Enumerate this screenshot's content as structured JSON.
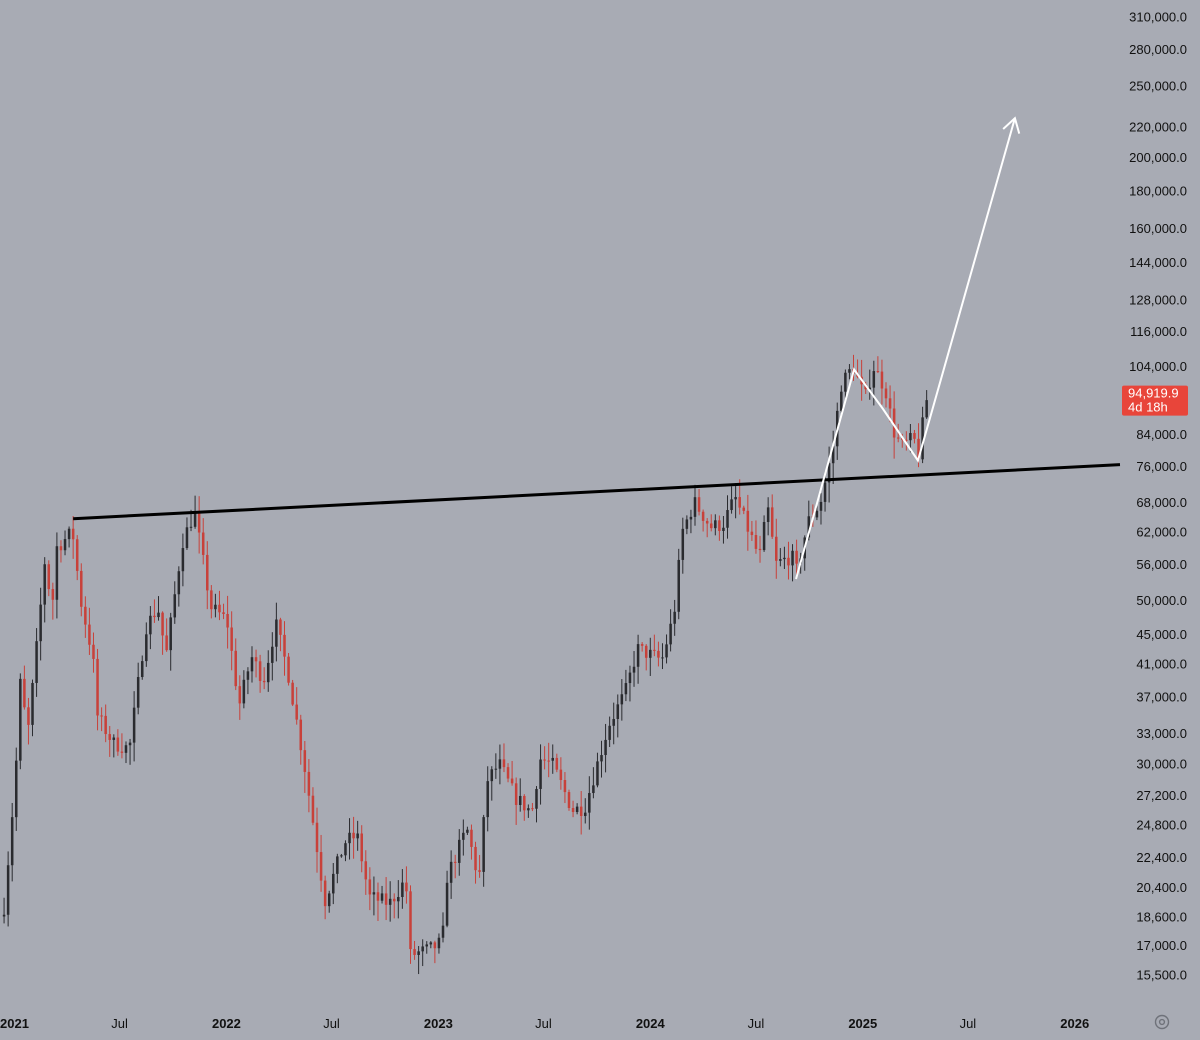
{
  "colors": {
    "background": "#a8abb4",
    "bull": "#2a2b2f",
    "bear": "#c8413a",
    "trendline": "#000000",
    "projection": "#ffffff",
    "price_label": "#e8453a"
  },
  "chart_data": {
    "type": "candlestick",
    "scale": "log",
    "x_axis_type": "date",
    "ylim": [
      14800,
      315000
    ],
    "xlim": [
      "2020-12-07",
      "2026-03-20"
    ],
    "yticks": [
      "15,500.0",
      "17,000.0",
      "18,600.0",
      "20,400.0",
      "22,400.0",
      "24,800.0",
      "27,200.0",
      "30,000.0",
      "33,000.0",
      "37,000.0",
      "41,000.0",
      "45,000.0",
      "50,000.0",
      "56,000.0",
      "62,000.0",
      "68,000.0",
      "76,000.0",
      "84,000.0",
      "104,000.0",
      "116,000.0",
      "128,000.0",
      "144,000.0",
      "160,000.0",
      "180,000.0",
      "200,000.0",
      "220,000.0",
      "250,000.0",
      "280,000.0",
      "310,000.0"
    ],
    "xticks": [
      {
        "label": "2021",
        "date": "2021-01-01",
        "bold": true
      },
      {
        "label": "Jul",
        "date": "2021-07-01",
        "bold": false
      },
      {
        "label": "2022",
        "date": "2022-01-01",
        "bold": true
      },
      {
        "label": "Jul",
        "date": "2022-07-01",
        "bold": false
      },
      {
        "label": "2023",
        "date": "2023-01-01",
        "bold": true
      },
      {
        "label": "Jul",
        "date": "2023-07-01",
        "bold": false
      },
      {
        "label": "2024",
        "date": "2024-01-01",
        "bold": true
      },
      {
        "label": "Jul",
        "date": "2024-07-01",
        "bold": false
      },
      {
        "label": "2025",
        "date": "2025-01-01",
        "bold": true
      },
      {
        "label": "Jul",
        "date": "2025-07-01",
        "bold": false
      },
      {
        "label": "2026",
        "date": "2026-01-01",
        "bold": true
      }
    ],
    "price_path": [
      [
        "2020-12-14",
        19200
      ],
      [
        "2021-01-03",
        29000
      ],
      [
        "2021-01-10",
        39000
      ],
      [
        "2021-01-24",
        33000
      ],
      [
        "2021-02-14",
        48000
      ],
      [
        "2021-02-21",
        57000
      ],
      [
        "2021-03-07",
        49000
      ],
      [
        "2021-03-14",
        59000
      ],
      [
        "2021-04-11",
        62000
      ],
      [
        "2021-04-25",
        50000
      ],
      [
        "2021-05-16",
        42000
      ],
      [
        "2021-05-23",
        35000
      ],
      [
        "2021-06-20",
        32000
      ],
      [
        "2021-07-18",
        31500
      ],
      [
        "2021-08-15",
        46000
      ],
      [
        "2021-09-05",
        49000
      ],
      [
        "2021-09-19",
        42000
      ],
      [
        "2021-10-17",
        60000
      ],
      [
        "2021-11-07",
        66000
      ],
      [
        "2021-11-21",
        57000
      ],
      [
        "2021-12-05",
        49000
      ],
      [
        "2022-01-02",
        47000
      ],
      [
        "2022-01-23",
        36000
      ],
      [
        "2022-02-13",
        42000
      ],
      [
        "2022-03-06",
        39000
      ],
      [
        "2022-03-27",
        46500
      ],
      [
        "2022-04-17",
        40000
      ],
      [
        "2022-05-15",
        30000
      ],
      [
        "2022-06-12",
        21500
      ],
      [
        "2022-06-19",
        19500
      ],
      [
        "2022-07-24",
        23500
      ],
      [
        "2022-08-14",
        24000
      ],
      [
        "2022-09-04",
        19800
      ],
      [
        "2022-10-09",
        19400
      ],
      [
        "2022-11-06",
        20900
      ],
      [
        "2022-11-13",
        16500
      ],
      [
        "2022-12-18",
        16800
      ],
      [
        "2023-01-08",
        17200
      ],
      [
        "2023-01-15",
        21000
      ],
      [
        "2023-02-19",
        24500
      ],
      [
        "2023-03-12",
        20800
      ],
      [
        "2023-03-26",
        28500
      ],
      [
        "2023-04-16",
        30000
      ],
      [
        "2023-05-14",
        27000
      ],
      [
        "2023-06-11",
        25800
      ],
      [
        "2023-06-25",
        30500
      ],
      [
        "2023-07-16",
        30000
      ],
      [
        "2023-08-20",
        26000
      ],
      [
        "2023-09-10",
        26200
      ],
      [
        "2023-10-22",
        34000
      ],
      [
        "2023-11-19",
        37500
      ],
      [
        "2023-12-10",
        43000
      ],
      [
        "2024-01-21",
        41500
      ],
      [
        "2024-02-11",
        48000
      ],
      [
        "2024-02-25",
        62000
      ],
      [
        "2024-03-17",
        68000
      ],
      [
        "2024-04-14",
        63000
      ],
      [
        "2024-05-05",
        63500
      ],
      [
        "2024-05-26",
        69000
      ],
      [
        "2024-06-23",
        61000
      ],
      [
        "2024-07-07",
        57000
      ],
      [
        "2024-07-21",
        67000
      ],
      [
        "2024-08-04",
        56000
      ],
      [
        "2024-09-01",
        57500
      ],
      [
        "2024-09-08",
        54500
      ],
      [
        "2024-09-29",
        64000
      ],
      [
        "2024-10-20",
        68000
      ],
      [
        "2024-11-10",
        80000
      ],
      [
        "2024-11-24",
        98000
      ],
      [
        "2024-12-15",
        104000
      ],
      [
        "2025-01-05",
        94000
      ],
      [
        "2025-01-19",
        104000
      ],
      [
        "2025-02-09",
        97000
      ],
      [
        "2025-02-23",
        85000
      ],
      [
        "2025-03-09",
        81000
      ],
      [
        "2025-03-30",
        83000
      ],
      [
        "2025-04-06",
        78000
      ],
      [
        "2025-04-20",
        93500
      ],
      [
        "2025-04-27",
        94920
      ]
    ],
    "trendline": {
      "start": [
        "2021-04-12",
        64600
      ],
      "end": [
        "2026-03-20",
        76500
      ]
    },
    "projection": [
      [
        "2024-09-08",
        53500
      ],
      [
        "2024-12-17",
        103000
      ],
      [
        "2025-02-05",
        91000
      ],
      [
        "2025-04-06",
        77500
      ],
      [
        "2025-09-20",
        226000
      ]
    ],
    "last_price": {
      "label": "94,919.9",
      "countdown": "4d 18h",
      "value": 94919.9
    }
  }
}
